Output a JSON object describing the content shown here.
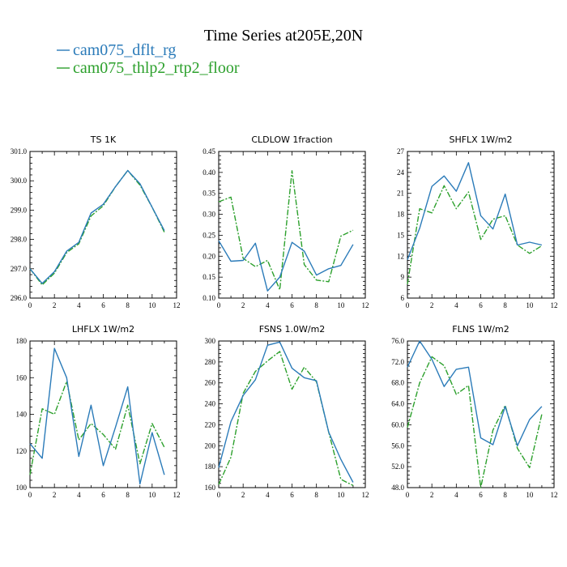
{
  "figure": {
    "title": "Time Series at205E,20N",
    "legend": [
      {
        "label": "cam075_dflt_rg",
        "color": "#2b7bb9",
        "dash": "solid"
      },
      {
        "label": "cam075_thlp2_rtp2_floor",
        "color": "#2ca02c",
        "dash": "dashdot"
      }
    ]
  },
  "chart_data": [
    {
      "type": "line",
      "title": "TS   1K",
      "x": [
        0,
        1,
        2,
        3,
        4,
        5,
        6,
        7,
        8,
        9,
        10,
        11
      ],
      "xlim": [
        0,
        12
      ],
      "xticks": [
        "0",
        "2",
        "4",
        "6",
        "8",
        "10",
        "12"
      ],
      "ylim": [
        296.0,
        301.0
      ],
      "yticks": [
        "296.0",
        "297.0",
        "298.0",
        "299.0",
        "300.0",
        "301.0"
      ],
      "series": [
        {
          "name": "cam075_dflt_rg",
          "values": [
            297.0,
            296.5,
            296.9,
            297.6,
            297.9,
            298.9,
            299.2,
            299.8,
            300.35,
            299.9,
            299.1,
            298.3
          ]
        },
        {
          "name": "cam075_thlp2_rtp2_floor",
          "values": [
            297.0,
            296.45,
            296.85,
            297.55,
            297.85,
            298.8,
            299.15,
            299.8,
            300.35,
            299.85,
            299.1,
            298.25
          ]
        }
      ]
    },
    {
      "type": "line",
      "title": "CLDLOW   1fraction",
      "x": [
        0,
        1,
        2,
        3,
        4,
        5,
        6,
        7,
        8,
        9,
        10,
        11
      ],
      "xlim": [
        0,
        12
      ],
      "xticks": [
        "0",
        "2",
        "4",
        "6",
        "8",
        "10",
        "12"
      ],
      "ylim": [
        0.1,
        0.45
      ],
      "yticks": [
        "0.10",
        "0.15",
        "0.20",
        "0.25",
        "0.30",
        "0.35",
        "0.40",
        "0.45"
      ],
      "series": [
        {
          "name": "cam075_dflt_rg",
          "values": [
            0.237,
            0.188,
            0.19,
            0.231,
            0.117,
            0.15,
            0.233,
            0.212,
            0.155,
            0.17,
            0.178,
            0.228
          ]
        },
        {
          "name": "cam075_thlp2_rtp2_floor",
          "values": [
            0.33,
            0.341,
            0.195,
            0.175,
            0.19,
            0.12,
            0.404,
            0.18,
            0.143,
            0.139,
            0.248,
            0.262
          ]
        }
      ]
    },
    {
      "type": "line",
      "title": "SHFLX   1W/m2",
      "x": [
        0,
        1,
        2,
        3,
        4,
        5,
        6,
        7,
        8,
        9,
        10,
        11
      ],
      "xlim": [
        0,
        12
      ],
      "xticks": [
        "0",
        "2",
        "4",
        "6",
        "8",
        "10",
        "12"
      ],
      "ylim": [
        6,
        27
      ],
      "yticks": [
        "6",
        "9",
        "12",
        "15",
        "18",
        "21",
        "24",
        "27"
      ],
      "series": [
        {
          "name": "cam075_dflt_rg",
          "values": [
            11.5,
            16.0,
            22.0,
            23.5,
            21.3,
            25.4,
            17.8,
            15.9,
            20.9,
            13.6,
            14.0,
            13.6
          ]
        },
        {
          "name": "cam075_thlp2_rtp2_floor",
          "values": [
            8.0,
            18.8,
            18.2,
            22.1,
            18.8,
            21.2,
            14.4,
            17.3,
            17.8,
            13.6,
            12.4,
            13.5
          ]
        }
      ]
    },
    {
      "type": "line",
      "title": "LHFLX   1W/m2",
      "x": [
        0,
        1,
        2,
        3,
        4,
        5,
        6,
        7,
        8,
        9,
        10,
        11
      ],
      "xlim": [
        0,
        12
      ],
      "xticks": [
        "0",
        "2",
        "4",
        "6",
        "8",
        "10",
        "12"
      ],
      "ylim": [
        100,
        180
      ],
      "yticks": [
        "100",
        "120",
        "140",
        "160",
        "180"
      ],
      "series": [
        {
          "name": "cam075_dflt_rg",
          "values": [
            124,
            116,
            176,
            160,
            117,
            145,
            112,
            133,
            155,
            102,
            130,
            107
          ]
        },
        {
          "name": "cam075_thlp2_rtp2_floor",
          "values": [
            107,
            143,
            140,
            158,
            126,
            135,
            129,
            121,
            145,
            113,
            135,
            122
          ]
        }
      ]
    },
    {
      "type": "line",
      "title": "FSNS   1.0W/m2",
      "x": [
        0,
        1,
        2,
        3,
        4,
        5,
        6,
        7,
        8,
        9,
        10,
        11
      ],
      "xlim": [
        0,
        12
      ],
      "xticks": [
        "0",
        "2",
        "4",
        "6",
        "8",
        "10",
        "12"
      ],
      "ylim": [
        160,
        300
      ],
      "yticks": [
        "160",
        "180",
        "200",
        "220",
        "240",
        "260",
        "280",
        "300"
      ],
      "series": [
        {
          "name": "cam075_dflt_rg",
          "values": [
            179,
            223,
            248,
            263,
            296,
            299,
            274,
            265,
            262,
            213,
            187,
            165
          ]
        },
        {
          "name": "cam075_thlp2_rtp2_floor",
          "values": [
            163,
            189,
            250,
            271,
            281,
            290,
            254,
            275,
            261,
            213,
            168,
            162
          ]
        }
      ]
    },
    {
      "type": "line",
      "title": "FLNS   1W/m2",
      "x": [
        0,
        1,
        2,
        3,
        4,
        5,
        6,
        7,
        8,
        9,
        10,
        11
      ],
      "xlim": [
        0,
        12
      ],
      "xticks": [
        "0",
        "2",
        "4",
        "6",
        "8",
        "10",
        "12"
      ],
      "ylim": [
        48.0,
        76.0
      ],
      "yticks": [
        "48.0",
        "52.0",
        "56.0",
        "60.0",
        "64.0",
        "68.0",
        "72.0",
        "76.0"
      ],
      "series": [
        {
          "name": "cam075_dflt_rg",
          "values": [
            71.0,
            76.0,
            72.5,
            67.3,
            70.6,
            71.0,
            57.5,
            56.2,
            63.5,
            56.0,
            61.0,
            63.5
          ]
        },
        {
          "name": "cam075_thlp2_rtp2_floor",
          "values": [
            59.5,
            68.0,
            73.0,
            71.3,
            65.8,
            67.5,
            48.0,
            59.0,
            63.7,
            55.5,
            51.8,
            62.0
          ]
        }
      ]
    }
  ]
}
